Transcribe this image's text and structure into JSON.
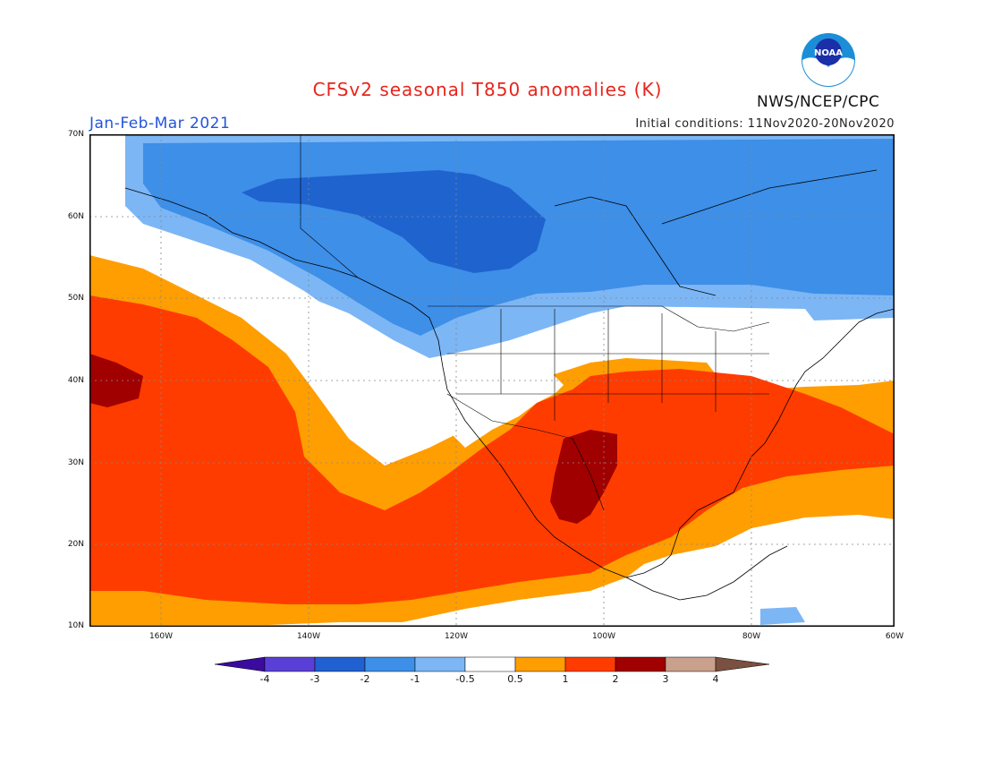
{
  "title": "CFSv2 seasonal T850 anomalies (K)",
  "period": "Jan-Feb-Mar 2021",
  "initial_conditions": "Initial conditions: 11Nov2020-20Nov2020",
  "agency": "NWS/NCEP/CPC",
  "logo_text": "NOAA",
  "lat_labels": [
    "70N",
    "60N",
    "50N",
    "40N",
    "30N",
    "20N",
    "10N"
  ],
  "lon_labels": [
    "160W",
    "140W",
    "120W",
    "100W",
    "80W",
    "60W"
  ],
  "colorbar": {
    "labels": [
      "-4",
      "-3",
      "-2",
      "-1",
      "-0.5",
      "0.5",
      "1",
      "2",
      "3",
      "4"
    ],
    "colors": [
      "#3a0b9e",
      "#5a3fd6",
      "#2060d0",
      "#3d8fe8",
      "#7cb6f5",
      "#ffffff",
      "#ff9e00",
      "#ff3c00",
      "#a00000",
      "#c8a08c",
      "#7a5040"
    ]
  },
  "map_colors": {
    "cold_strong": "#1f63cf",
    "cold": "#3d8fe8",
    "cold_light": "#7cb6f5",
    "warm_light": "#ff9e00",
    "warm": "#ff3c00",
    "warm_strong": "#a00000"
  }
}
